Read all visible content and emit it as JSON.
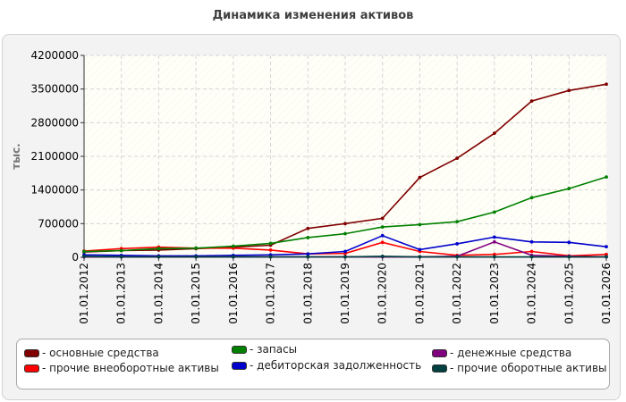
{
  "title": "Динамика изменения активов",
  "chart_data": {
    "type": "line",
    "title": "Динамика изменения активов",
    "ylabel": "тыс.",
    "xlabel": "",
    "ylim": [
      0,
      4200000
    ],
    "yticks": [
      "0",
      "700000",
      "1400000",
      "2100000",
      "2800000",
      "3500000",
      "4200000"
    ],
    "categories": [
      "01.01.2012",
      "01.01.2013",
      "01.01.2014",
      "01.01.2015",
      "01.01.2016",
      "01.01.2017",
      "01.01.2018",
      "01.01.2019",
      "01.01.2020",
      "01.01.2021",
      "01.01.2022",
      "01.01.2023",
      "01.01.2024",
      "01.01.2025",
      "01.01.2026"
    ],
    "grid": true,
    "legend_position": "bottom",
    "series": [
      {
        "name": "основные средства",
        "color": "#800000",
        "values": [
          110000,
          140000,
          150000,
          180000,
          210000,
          250000,
          600000,
          700000,
          810000,
          1660000,
          2060000,
          2580000,
          3250000,
          3470000,
          3600000
        ]
      },
      {
        "name": "прочие внеоборотные активы",
        "color": "#ff0000",
        "values": [
          130000,
          180000,
          210000,
          190000,
          190000,
          150000,
          70000,
          80000,
          310000,
          120000,
          40000,
          60000,
          120000,
          30000,
          60000
        ]
      },
      {
        "name": "запасы",
        "color": "#008000",
        "values": [
          120000,
          140000,
          180000,
          190000,
          230000,
          290000,
          410000,
          490000,
          630000,
          680000,
          740000,
          940000,
          1240000,
          1430000,
          1670000
        ]
      },
      {
        "name": "дебиторская задолженность",
        "color": "#0000cc",
        "values": [
          50000,
          40000,
          30000,
          30000,
          40000,
          50000,
          70000,
          120000,
          450000,
          160000,
          280000,
          420000,
          320000,
          310000,
          220000
        ]
      },
      {
        "name": "денежные средства",
        "color": "#800080",
        "values": [
          10000,
          10000,
          10000,
          10000,
          10000,
          10000,
          10000,
          10000,
          10000,
          10000,
          20000,
          320000,
          40000,
          20000,
          10000
        ]
      },
      {
        "name": "прочие оборотные активы",
        "color": "#004040",
        "values": [
          20000,
          10000,
          10000,
          10000,
          10000,
          10000,
          10000,
          10000,
          20000,
          10000,
          10000,
          10000,
          10000,
          10000,
          10000
        ]
      }
    ]
  },
  "legend": {
    "items": [
      {
        "label": "- основные средства",
        "color": "#800000"
      },
      {
        "label": "- запасы",
        "color": "#008000"
      },
      {
        "label": "- денежные средства",
        "color": "#800080"
      },
      {
        "label": "- прочие внеоборотные активы",
        "color": "#ff0000"
      },
      {
        "label": "- дебиторская задолженность",
        "color": "#0000cc"
      },
      {
        "label": "- прочие оборотные активы",
        "color": "#004040"
      }
    ]
  }
}
